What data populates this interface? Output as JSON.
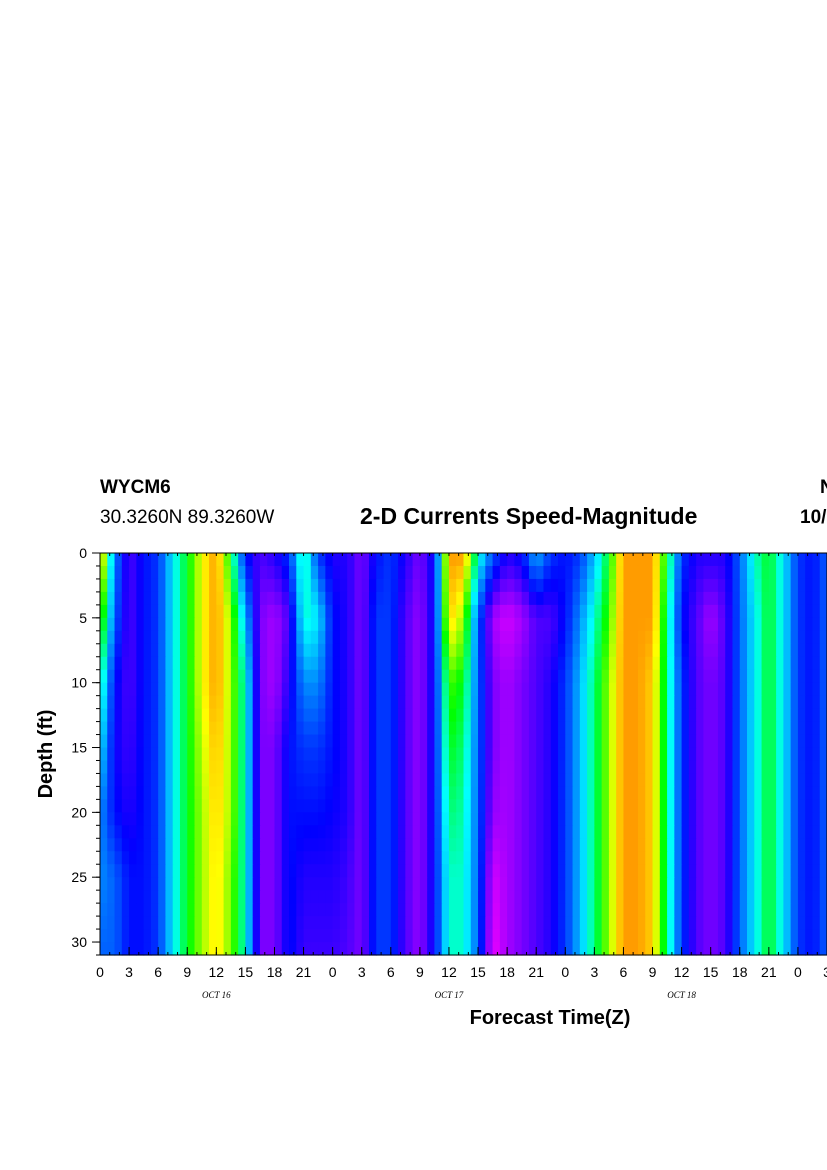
{
  "header": {
    "station": "WYCM6",
    "coords": "30.3260N 89.3260W",
    "title": "2-D Currents Speed-Magnitude",
    "right_line1": "N",
    "right_line2": "10/"
  },
  "chart_data": {
    "type": "heatmap",
    "title": "2-D Currents Speed-Magnitude",
    "xlabel": "Forecast Time(Z)",
    "ylabel": "Depth (ft)",
    "x_unit": "hours",
    "xlim": [
      0,
      75
    ],
    "ylim": [
      31,
      0
    ],
    "x_ticks": [
      0,
      3,
      6,
      9,
      12,
      15,
      18,
      21,
      24,
      27,
      30,
      33,
      36,
      39,
      42,
      45,
      48,
      51,
      54,
      57,
      60,
      63,
      66,
      69,
      72,
      75
    ],
    "x_tick_labels": [
      "0",
      "3",
      "6",
      "9",
      "12",
      "15",
      "18",
      "21",
      "0",
      "3",
      "6",
      "9",
      "12",
      "15",
      "18",
      "21",
      "0",
      "3",
      "6",
      "9",
      "12",
      "15",
      "18",
      "21",
      "0",
      "3"
    ],
    "y_ticks": [
      0,
      5,
      10,
      15,
      20,
      25,
      30
    ],
    "y_tick_labels": [
      "0",
      "5",
      "10",
      "15",
      "20",
      "25",
      "30"
    ],
    "date_labels": [
      {
        "text": "OCT 16",
        "x": 12
      },
      {
        "text": "OCT 17",
        "x": 36
      },
      {
        "text": "OCT 18",
        "x": 60
      }
    ],
    "colormap": [
      "#ff00ff",
      "#8000ff",
      "#0000ff",
      "#0078ff",
      "#00ffff",
      "#00ff00",
      "#ffff00",
      "#ff6600"
    ],
    "value_range": [
      0,
      1
    ],
    "x": [
      0,
      1.5,
      3,
      4.5,
      6,
      7.5,
      9,
      10.5,
      12,
      13.5,
      15,
      16.5,
      18,
      19.5,
      21,
      22.5,
      24,
      25.5,
      27,
      28.5,
      30,
      31.5,
      33,
      34.5,
      36,
      37.5,
      39,
      40.5,
      42,
      43.5,
      45,
      46.5,
      48,
      49.5,
      51,
      52.5,
      54,
      55.5,
      57,
      58.5,
      60,
      61.5,
      63,
      64.5,
      66,
      67.5,
      69,
      70.5,
      72,
      73.5,
      75
    ],
    "depth": [
      0,
      5,
      10,
      15,
      20,
      25,
      31
    ],
    "values": [
      [
        0.95,
        0.45,
        0.2,
        0.3,
        0.35,
        0.55,
        0.7,
        0.85,
        0.95,
        0.7,
        0.3,
        0.2,
        0.25,
        0.35,
        0.65,
        0.35,
        0.25,
        0.25,
        0.15,
        0.3,
        0.35,
        0.25,
        0.15,
        0.3,
        0.95,
        0.95,
        0.6,
        0.4,
        0.25,
        0.3,
        0.5,
        0.35,
        0.3,
        0.35,
        0.5,
        0.7,
        0.95,
        0.95,
        0.95,
        0.7,
        0.35,
        0.25,
        0.25,
        0.25,
        0.4,
        0.6,
        0.7,
        0.55,
        0.35,
        0.3,
        0.4
      ],
      [
        0.8,
        0.4,
        0.2,
        0.3,
        0.35,
        0.55,
        0.7,
        0.85,
        0.95,
        0.8,
        0.5,
        0.15,
        0.1,
        0.2,
        0.6,
        0.55,
        0.3,
        0.25,
        0.15,
        0.35,
        0.35,
        0.2,
        0.12,
        0.3,
        0.9,
        0.8,
        0.4,
        0.1,
        0.05,
        0.1,
        0.2,
        0.2,
        0.3,
        0.45,
        0.6,
        0.75,
        0.95,
        0.95,
        0.95,
        0.65,
        0.3,
        0.2,
        0.1,
        0.2,
        0.4,
        0.55,
        0.7,
        0.55,
        0.35,
        0.3,
        0.4
      ],
      [
        0.65,
        0.3,
        0.2,
        0.3,
        0.35,
        0.55,
        0.7,
        0.85,
        0.95,
        0.8,
        0.6,
        0.15,
        0.1,
        0.25,
        0.45,
        0.45,
        0.3,
        0.25,
        0.15,
        0.35,
        0.35,
        0.2,
        0.12,
        0.3,
        0.75,
        0.7,
        0.4,
        0.15,
        0.1,
        0.15,
        0.2,
        0.25,
        0.35,
        0.5,
        0.65,
        0.8,
        0.95,
        0.95,
        0.9,
        0.65,
        0.35,
        0.2,
        0.15,
        0.2,
        0.4,
        0.55,
        0.7,
        0.55,
        0.35,
        0.3,
        0.4
      ],
      [
        0.55,
        0.28,
        0.22,
        0.3,
        0.35,
        0.55,
        0.7,
        0.82,
        0.92,
        0.8,
        0.6,
        0.15,
        0.15,
        0.3,
        0.35,
        0.35,
        0.3,
        0.25,
        0.15,
        0.35,
        0.35,
        0.2,
        0.12,
        0.3,
        0.7,
        0.65,
        0.4,
        0.15,
        0.1,
        0.15,
        0.2,
        0.25,
        0.35,
        0.5,
        0.65,
        0.8,
        0.95,
        0.95,
        0.9,
        0.65,
        0.35,
        0.2,
        0.15,
        0.2,
        0.4,
        0.55,
        0.7,
        0.55,
        0.35,
        0.3,
        0.4
      ],
      [
        0.45,
        0.3,
        0.25,
        0.3,
        0.35,
        0.55,
        0.7,
        0.8,
        0.9,
        0.8,
        0.6,
        0.15,
        0.15,
        0.3,
        0.3,
        0.3,
        0.28,
        0.25,
        0.15,
        0.35,
        0.35,
        0.2,
        0.12,
        0.3,
        0.65,
        0.62,
        0.4,
        0.12,
        0.1,
        0.15,
        0.2,
        0.25,
        0.35,
        0.5,
        0.65,
        0.8,
        0.95,
        0.95,
        0.9,
        0.65,
        0.35,
        0.2,
        0.15,
        0.2,
        0.4,
        0.55,
        0.7,
        0.55,
        0.35,
        0.3,
        0.4
      ],
      [
        0.45,
        0.4,
        0.3,
        0.3,
        0.35,
        0.55,
        0.7,
        0.8,
        0.88,
        0.78,
        0.6,
        0.15,
        0.15,
        0.3,
        0.25,
        0.25,
        0.25,
        0.22,
        0.15,
        0.35,
        0.35,
        0.2,
        0.12,
        0.3,
        0.6,
        0.6,
        0.4,
        0.05,
        0.1,
        0.15,
        0.2,
        0.25,
        0.35,
        0.5,
        0.65,
        0.8,
        0.95,
        0.95,
        0.9,
        0.65,
        0.35,
        0.2,
        0.15,
        0.2,
        0.4,
        0.55,
        0.7,
        0.55,
        0.35,
        0.3,
        0.4
      ],
      [
        0.4,
        0.4,
        0.3,
        0.3,
        0.35,
        0.55,
        0.7,
        0.8,
        0.88,
        0.78,
        0.6,
        0.15,
        0.15,
        0.3,
        0.22,
        0.22,
        0.22,
        0.2,
        0.15,
        0.35,
        0.35,
        0.2,
        0.12,
        0.3,
        0.6,
        0.6,
        0.4,
        0.02,
        0.1,
        0.15,
        0.2,
        0.25,
        0.35,
        0.5,
        0.65,
        0.8,
        0.95,
        0.95,
        0.9,
        0.65,
        0.35,
        0.2,
        0.15,
        0.2,
        0.4,
        0.55,
        0.7,
        0.55,
        0.35,
        0.3,
        0.4
      ]
    ]
  }
}
